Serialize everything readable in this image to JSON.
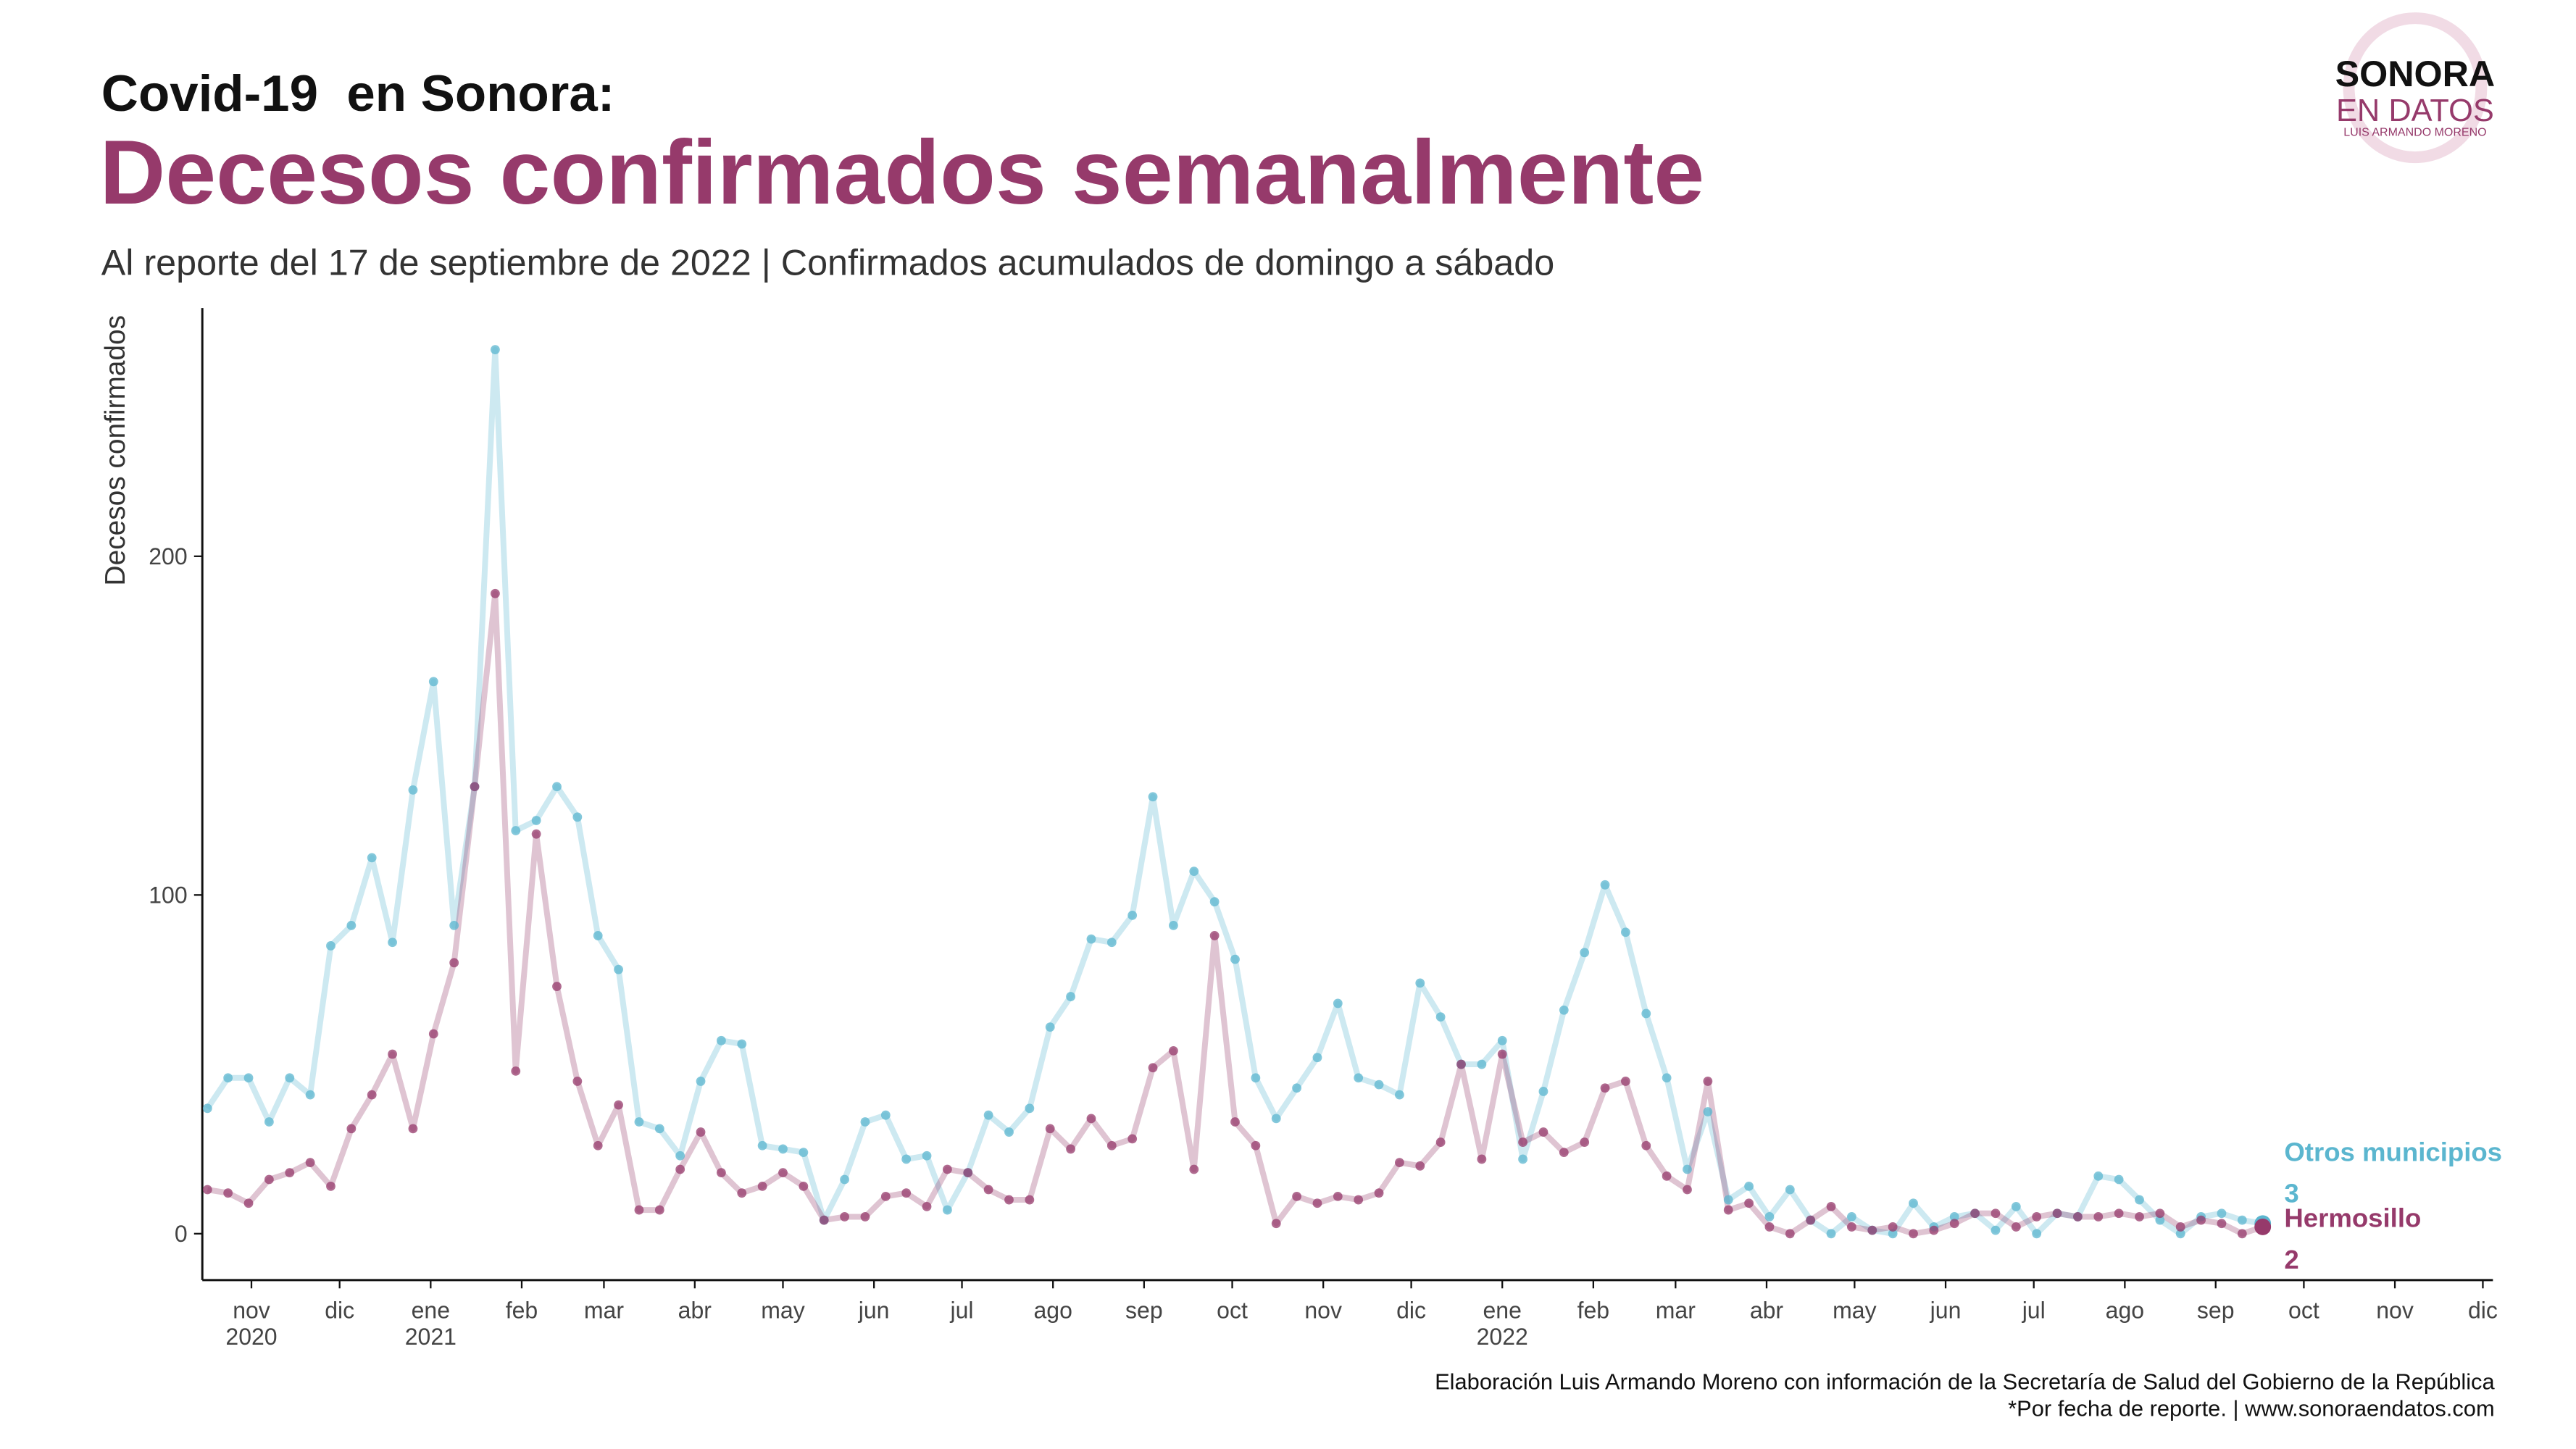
{
  "logo": {
    "line1": "SONORA",
    "line2": "EN DATOS",
    "line3": "LUIS ARMANDO MORENO"
  },
  "chart_data": {
    "type": "line",
    "suptitle": "Covid-19  en Sonora:",
    "title": "Decesos confirmados semanalmente",
    "subtitle": "Al reporte del 17 de septiembre de 2022 | Confirmados acumulados de domingo a sábado",
    "y_label": "Decesos confirmados",
    "caption": [
      "Elaboración Luis Armando Moreno con información de la Secretaría de Salud del Gobierno de la República",
      "*Por fecha de reporte. | www.sonoraendatos.com"
    ],
    "categories": [
      null,
      null,
      null,
      null,
      null,
      null,
      null,
      null,
      null,
      null,
      null,
      null,
      null,
      null,
      null,
      null,
      null,
      null,
      null,
      null,
      null,
      null,
      null,
      null,
      null,
      null,
      null,
      null,
      null,
      null,
      null,
      null,
      null,
      null,
      null,
      null,
      null,
      null,
      null,
      null,
      null,
      null,
      null,
      null,
      null,
      null,
      null,
      null,
      null,
      null,
      null,
      null,
      null,
      null,
      null,
      null,
      null,
      null,
      null,
      null,
      null,
      null,
      null,
      null,
      null,
      null,
      null,
      null,
      null,
      null,
      null,
      null,
      null,
      null,
      null,
      null,
      null,
      null,
      null,
      null,
      null,
      null,
      null,
      null,
      null,
      null,
      null,
      null,
      null,
      null,
      null,
      null,
      null,
      null,
      null,
      null,
      null,
      null,
      null,
      null,
      null
    ],
    "series": [
      {
        "name": "Otros municipios",
        "color": "#5bb6cf",
        "values": [
          37,
          46,
          46,
          33,
          46,
          41,
          85,
          91,
          111,
          86,
          131,
          163,
          91,
          132,
          261,
          119,
          122,
          132,
          123,
          88,
          78,
          33,
          31,
          23,
          45,
          57,
          56,
          26,
          25,
          24,
          4,
          16,
          33,
          35,
          22,
          23,
          7,
          18,
          35,
          30,
          37,
          61,
          70,
          87,
          86,
          94,
          129,
          91,
          107,
          98,
          81,
          46,
          34,
          43,
          52,
          68,
          46,
          44,
          41,
          74,
          64,
          50,
          50,
          57,
          22,
          42,
          66,
          83,
          103,
          89,
          65,
          46,
          19,
          36,
          10,
          14,
          5,
          13,
          4,
          0,
          5,
          1,
          0,
          9,
          2,
          5,
          6,
          1,
          8,
          0,
          6,
          5,
          17,
          16,
          10,
          4,
          0,
          5,
          6,
          4,
          3
        ]
      },
      {
        "name": "Hermosillo",
        "color": "#963a6b",
        "values": [
          13,
          12,
          9,
          16,
          18,
          21,
          14,
          31,
          41,
          53,
          31,
          59,
          80,
          132,
          189,
          48,
          118,
          73,
          45,
          26,
          38,
          7,
          7,
          19,
          30,
          18,
          12,
          14,
          18,
          14,
          4,
          5,
          5,
          11,
          12,
          8,
          19,
          18,
          13,
          10,
          10,
          31,
          25,
          34,
          26,
          28,
          49,
          54,
          19,
          88,
          33,
          26,
          3,
          11,
          9,
          11,
          10,
          12,
          21,
          20,
          27,
          50,
          22,
          53,
          27,
          30,
          24,
          27,
          43,
          45,
          26,
          17,
          13,
          45,
          7,
          9,
          2,
          0,
          4,
          8,
          2,
          1,
          2,
          0,
          1,
          3,
          6,
          6,
          2,
          5,
          6,
          5,
          5,
          6,
          5,
          6,
          2,
          4,
          3,
          0,
          2
        ]
      }
    ],
    "xlim": [
      -0.25,
      111.2
    ],
    "xticks": [
      {
        "value": 2.14,
        "label": "nov\n2020"
      },
      {
        "value": 6.43,
        "label": "dic"
      },
      {
        "value": 10.86,
        "label": "ene\n2021"
      },
      {
        "value": 15.29,
        "label": "feb"
      },
      {
        "value": 19.29,
        "label": "mar"
      },
      {
        "value": 23.71,
        "label": "abr"
      },
      {
        "value": 28,
        "label": "may"
      },
      {
        "value": 32.43,
        "label": "jun"
      },
      {
        "value": 36.71,
        "label": "jul"
      },
      {
        "value": 41.14,
        "label": "ago"
      },
      {
        "value": 45.57,
        "label": "sep"
      },
      {
        "value": 49.86,
        "label": "oct"
      },
      {
        "value": 54.29,
        "label": "nov"
      },
      {
        "value": 58.57,
        "label": "dic"
      },
      {
        "value": 63,
        "label": "ene\n2022"
      },
      {
        "value": 67.43,
        "label": "feb"
      },
      {
        "value": 71.43,
        "label": "mar"
      },
      {
        "value": 75.86,
        "label": "abr"
      },
      {
        "value": 80.14,
        "label": "may"
      },
      {
        "value": 84.57,
        "label": "jun"
      },
      {
        "value": 88.86,
        "label": "jul"
      },
      {
        "value": 93.29,
        "label": "ago"
      },
      {
        "value": 97.71,
        "label": "sep"
      },
      {
        "value": 102,
        "label": "oct"
      },
      {
        "value": 106.43,
        "label": "nov"
      },
      {
        "value": 110.71,
        "label": "dic"
      }
    ],
    "ylim": [
      -13.7,
      273.3
    ],
    "yticks": [
      0,
      100,
      200
    ],
    "grid": false
  }
}
